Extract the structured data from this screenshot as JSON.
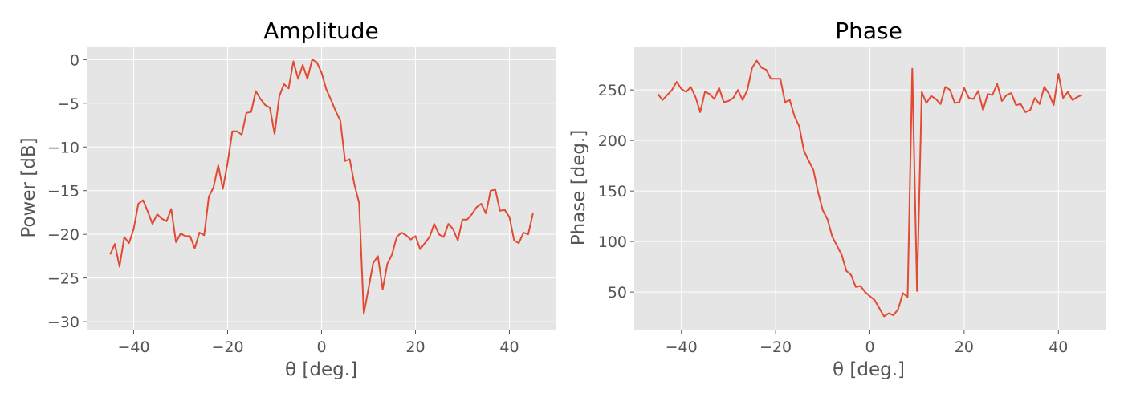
{
  "chart_data": [
    {
      "type": "line",
      "title": "Amplitude",
      "xlabel": "θ [deg.]",
      "ylabel": "Power [dB]",
      "xlim": [
        -50,
        50
      ],
      "ylim": [
        -31,
        1.5
      ],
      "xticks": [
        -40,
        -20,
        0,
        20,
        40
      ],
      "xtick_labels": [
        "−40",
        "−20",
        "0",
        "20",
        "40"
      ],
      "yticks": [
        0,
        -5,
        -10,
        -15,
        -20,
        -25,
        -30
      ],
      "ytick_labels": [
        "0",
        "−5",
        "−10",
        "−15",
        "−20",
        "−25",
        "−30"
      ],
      "grid": true,
      "series": [
        {
          "color": "#e24a33",
          "x": [
            -45,
            -44,
            -43,
            -42,
            -41,
            -40,
            -39,
            -38,
            -37,
            -36,
            -35,
            -34,
            -33,
            -32,
            -31,
            -30,
            -29,
            -28,
            -27,
            -26,
            -25,
            -24,
            -23,
            -22,
            -21,
            -20,
            -19,
            -18,
            -17,
            -16,
            -15,
            -14,
            -13,
            -12,
            -11,
            -10,
            -9,
            -8,
            -7,
            -6,
            -5,
            -4,
            -3,
            -2,
            -1,
            0,
            1,
            2,
            3,
            4,
            5,
            6,
            7,
            8,
            9,
            10,
            11,
            12,
            13,
            14,
            15,
            16,
            17,
            18,
            19,
            20,
            21,
            22,
            23,
            24,
            25,
            26,
            27,
            28,
            29,
            30,
            31,
            32,
            33,
            34,
            35,
            36,
            37,
            38,
            39,
            40,
            41,
            42,
            43,
            44,
            45
          ],
          "y": [
            -22.3,
            -21.1,
            -23.7,
            -20.3,
            -21,
            -19.4,
            -16.5,
            -16.1,
            -17.4,
            -18.8,
            -17.7,
            -18.2,
            -18.5,
            -17.1,
            -20.9,
            -19.9,
            -20.2,
            -20.2,
            -21.6,
            -19.8,
            -20.1,
            -15.7,
            -14.6,
            -12.1,
            -14.8,
            -11.8,
            -8.2,
            -8.2,
            -8.6,
            -6.1,
            -6,
            -3.6,
            -4.5,
            -5.2,
            -5.5,
            -8.5,
            -4.2,
            -2.8,
            -3.3,
            -0.2,
            -2.2,
            -0.6,
            -2.2,
            0,
            -0.3,
            -1.5,
            -3.4,
            -4.6,
            -5.9,
            -7,
            -11.6,
            -11.4,
            -14.3,
            -16.4,
            -29.1,
            -26.2,
            -23.3,
            -22.5,
            -26.3,
            -23.4,
            -22.3,
            -20.3,
            -19.8,
            -20.1,
            -20.6,
            -20.2,
            -21.7,
            -21,
            -20.3,
            -18.8,
            -20,
            -20.3,
            -18.8,
            -19.4,
            -20.7,
            -18.3,
            -18.3,
            -17.7,
            -16.9,
            -16.5,
            -17.6,
            -15,
            -14.9,
            -17.3,
            -17.2,
            -18,
            -20.7,
            -21,
            -19.8,
            -20,
            -17.6
          ]
        }
      ]
    },
    {
      "type": "line",
      "title": "Phase",
      "xlabel": "θ [deg.]",
      "ylabel": "Phase [deg.]",
      "xlim": [
        -50,
        50
      ],
      "ylim": [
        12,
        293
      ],
      "xticks": [
        -40,
        -20,
        0,
        20,
        40
      ],
      "xtick_labels": [
        "−40",
        "−20",
        "0",
        "20",
        "40"
      ],
      "yticks": [
        50,
        100,
        150,
        200,
        250
      ],
      "ytick_labels": [
        "50",
        "100",
        "150",
        "200",
        "250"
      ],
      "grid": true,
      "series": [
        {
          "color": "#e24a33",
          "x": [
            -45,
            -44,
            -43,
            -42,
            -41,
            -40,
            -39,
            -38,
            -37,
            -36,
            -35,
            -34,
            -33,
            -32,
            -31,
            -30,
            -29,
            -28,
            -27,
            -26,
            -25,
            -24,
            -23,
            -22,
            -21,
            -20,
            -19,
            -18,
            -17,
            -16,
            -15,
            -14,
            -13,
            -12,
            -11,
            -10,
            -9,
            -8,
            -7,
            -6,
            -5,
            -4,
            -3,
            -2,
            -1,
            0,
            1,
            2,
            3,
            4,
            5,
            6,
            7,
            8,
            9,
            10,
            11,
            12,
            13,
            14,
            15,
            16,
            17,
            18,
            19,
            20,
            21,
            22,
            23,
            24,
            25,
            26,
            27,
            28,
            29,
            30,
            31,
            32,
            33,
            34,
            35,
            36,
            37,
            38,
            39,
            40,
            41,
            42,
            43,
            44,
            45
          ],
          "y": [
            246,
            240,
            245,
            250,
            258,
            251,
            248,
            253,
            243,
            228,
            248,
            246,
            241,
            252,
            238,
            239,
            242,
            250,
            240,
            250,
            272,
            279,
            272,
            270,
            261,
            261,
            261,
            238,
            240,
            224,
            214,
            190,
            180,
            171,
            149,
            131,
            122,
            105,
            96,
            87,
            71,
            67,
            55,
            56,
            50,
            46,
            42,
            34,
            26,
            29,
            27,
            33,
            49,
            45,
            271,
            51,
            248,
            237,
            244,
            241,
            236,
            253,
            250,
            237,
            238,
            252,
            242,
            241,
            249,
            230,
            246,
            245,
            256,
            239,
            245,
            247,
            235,
            236,
            228,
            230,
            242,
            236,
            253,
            246,
            235,
            266,
            242,
            248,
            240,
            243,
            245
          ]
        }
      ]
    }
  ]
}
